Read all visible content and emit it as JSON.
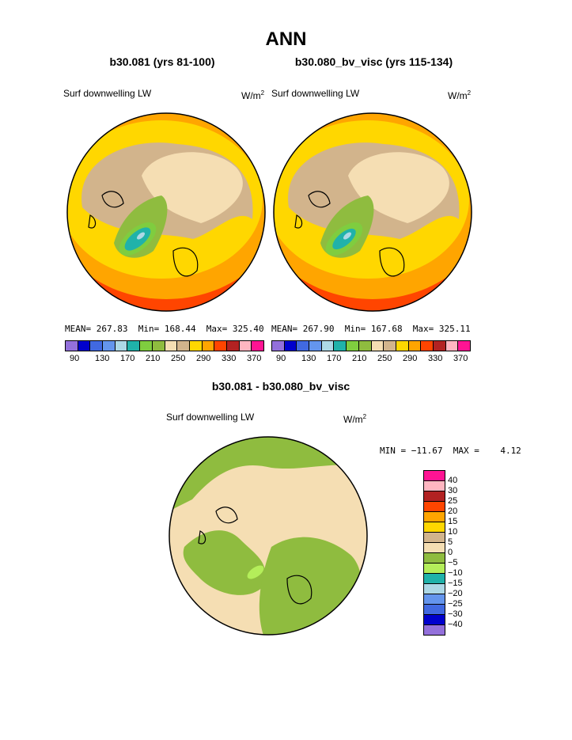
{
  "title": "ANN",
  "panels": {
    "left": {
      "subtitle": "b30.081 (yrs 81-100)",
      "label": "Surf downwelling LW",
      "unit_base": "W/m",
      "unit_exp": "2",
      "stats": "MEAN= 267.83  Min= 168.44  Max= 325.40"
    },
    "right": {
      "subtitle": "b30.080_bv_visc (yrs 115-134)",
      "label": "Surf downwelling LW",
      "unit_base": "W/m",
      "unit_exp": "2",
      "stats": "MEAN= 267.90  Min= 167.68  Max= 325.11"
    },
    "diff": {
      "subtitle": "b30.081 - b30.080_bv_visc",
      "label": "Surf downwelling LW",
      "unit_base": "W/m",
      "unit_exp": "2",
      "stats": "MIN = −11.67  MAX =    4.12"
    }
  },
  "colorbar": {
    "colors": [
      "#9370db",
      "#0000cd",
      "#4169e1",
      "#6495ed",
      "#add8e6",
      "#20b2aa",
      "#7fcd3f",
      "#8fbc3f",
      "#f5deb3",
      "#d2b48c",
      "#ffd700",
      "#ffa500",
      "#ff4500",
      "#b22222",
      "#ffb6c1",
      "#ff1493"
    ],
    "ticks": [
      "90",
      "130",
      "170",
      "210",
      "250",
      "290",
      "330",
      "370"
    ]
  },
  "diff_colorbar": {
    "colors": [
      "#ff1493",
      "#ffb6c1",
      "#b22222",
      "#ff4500",
      "#ffa500",
      "#ffd700",
      "#d2b48c",
      "#f5deb3",
      "#8fbc3f",
      "#b4ee5a",
      "#20b2aa",
      "#add8e6",
      "#6495ed",
      "#4169e1",
      "#0000cd",
      "#9370db"
    ],
    "ticks": [
      "40",
      "30",
      "25",
      "20",
      "15",
      "10",
      "5",
      "0",
      "−5",
      "−10",
      "−15",
      "−20",
      "−25",
      "−30",
      "−40"
    ]
  }
}
